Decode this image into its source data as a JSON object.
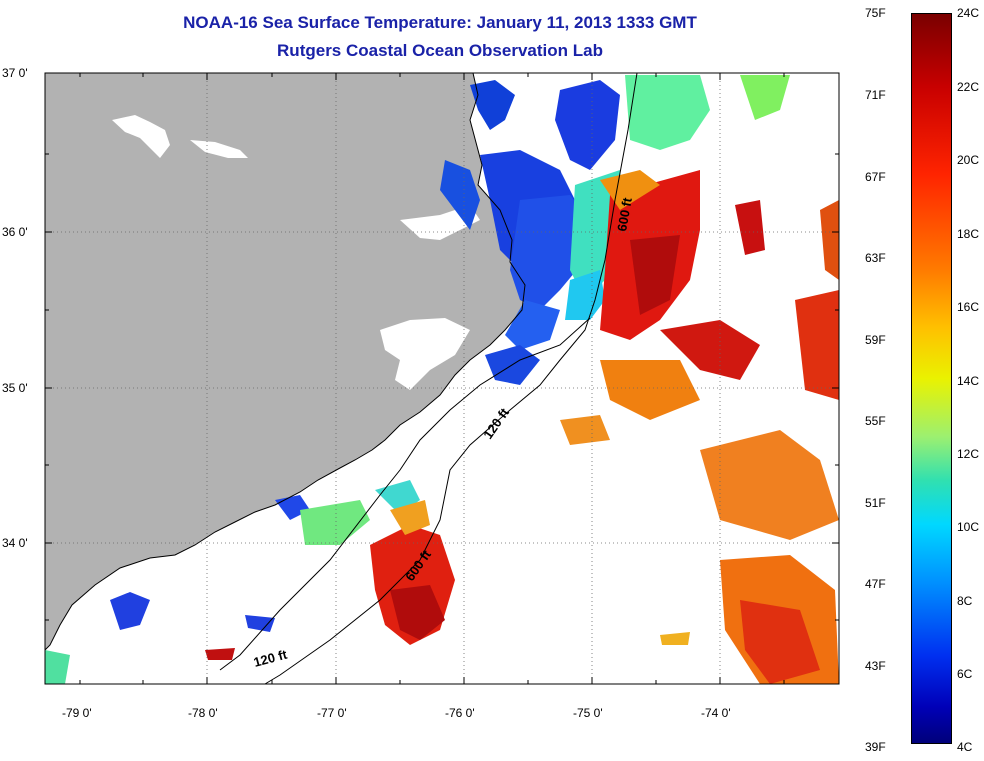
{
  "title": "NOAA-16 Sea Surface Temperature:  January 11, 2013 1333 GMT",
  "subtitle": "Rutgers Coastal Ocean Observation Lab",
  "axes": {
    "lat_labels": [
      "37 0'",
      "36 0'",
      "35 0'",
      "34 0'"
    ],
    "lon_labels": [
      "-79 0'",
      "-78 0'",
      "-77 0'",
      "-76 0'",
      "-75 0'",
      "-74 0'"
    ]
  },
  "isobaths": {
    "label_600_north": "600 ft",
    "label_120_north": "120 ft",
    "label_600_south": "600 ft",
    "label_120_south": "120 ft"
  },
  "colorbar": {
    "fahrenheit": [
      "75F",
      "71F",
      "67F",
      "63F",
      "59F",
      "55F",
      "51F",
      "47F",
      "43F",
      "39F"
    ],
    "celsius": [
      "24C",
      "22C",
      "20C",
      "18C",
      "16C",
      "14C",
      "12C",
      "10C",
      "8C",
      "6C",
      "4C"
    ]
  },
  "colors": {
    "land": "#b2b2b2",
    "title": "#1a22a8",
    "warm": "#d01810",
    "cold": "#1030d0",
    "mid": "#40e8c0"
  }
}
